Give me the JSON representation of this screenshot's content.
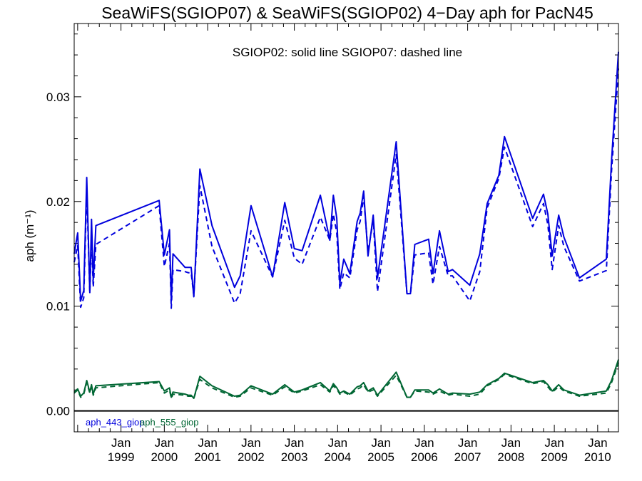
{
  "chart_data": {
    "type": "line",
    "title": "SeaWiFS(SGIOP07) & SeaWiFS(SGIOP02) 4−Day aph for PacN45",
    "annotation": "SGIOP02: solid line   SGIOP07: dashed line",
    "xlabel": "",
    "ylabel": "aph (m⁻¹)",
    "ylim": [
      -0.002,
      0.037
    ],
    "yticks": [
      0.0,
      0.01,
      0.02,
      0.03
    ],
    "ytick_labels": [
      "0.00",
      "0.01",
      "0.02",
      "0.03"
    ],
    "xlim": [
      1997.92,
      2010.48
    ],
    "xtick_month_label": "Jan",
    "xticks": [
      1999,
      2000,
      2001,
      2002,
      2003,
      2004,
      2005,
      2006,
      2007,
      2008,
      2009,
      2010
    ],
    "xtick_labels": [
      "1999",
      "2000",
      "2001",
      "2002",
      "2003",
      "2004",
      "2005",
      "2006",
      "2007",
      "2008",
      "2009",
      "2010"
    ],
    "zero_line": true,
    "legend_placement": "bottom-left",
    "legend": [
      {
        "label": "aph_443_giop",
        "color": "#0000dd"
      },
      {
        "label": "aph_555_giop",
        "color": "#006633"
      }
    ],
    "series": [
      {
        "name": "aph_443_giop",
        "color": "#0000dd",
        "style": "solid",
        "x": [
          1997.92,
          1998.0,
          1998.07,
          1998.14,
          1998.21,
          1998.28,
          1998.32,
          1998.36,
          1998.42,
          1999.88,
          2000.0,
          2000.12,
          2000.16,
          2000.2,
          2000.48,
          2000.55,
          2000.62,
          2000.68,
          2000.82,
          2001.1,
          2001.62,
          2001.75,
          2002.0,
          2002.5,
          2002.78,
          2003.0,
          2003.18,
          2003.6,
          2003.82,
          2003.9,
          2003.98,
          2004.05,
          2004.14,
          2004.28,
          2004.45,
          2004.52,
          2004.6,
          2004.7,
          2004.82,
          2004.92,
          2005.35,
          2005.6,
          2005.68,
          2005.78,
          2006.1,
          2006.2,
          2006.35,
          2006.55,
          2006.65,
          2007.05,
          2007.28,
          2007.45,
          2007.72,
          2007.85,
          2008.5,
          2008.75,
          2008.85,
          2008.95,
          2009.1,
          2009.22,
          2009.58,
          2010.2,
          2010.32,
          2010.48
        ],
        "y": [
          0.015,
          0.017,
          0.0105,
          0.0115,
          0.0223,
          0.0113,
          0.0183,
          0.0125,
          0.0177,
          0.0201,
          0.0149,
          0.0173,
          0.0105,
          0.015,
          0.0137,
          0.0137,
          0.0137,
          0.0109,
          0.0231,
          0.0177,
          0.0118,
          0.0129,
          0.0196,
          0.0128,
          0.0199,
          0.0155,
          0.0153,
          0.0206,
          0.0163,
          0.0206,
          0.0184,
          0.0122,
          0.0145,
          0.0131,
          0.0181,
          0.0189,
          0.021,
          0.0148,
          0.0187,
          0.0127,
          0.0257,
          0.0112,
          0.0112,
          0.0159,
          0.0164,
          0.0131,
          0.0172,
          0.0133,
          0.0135,
          0.012,
          0.015,
          0.0198,
          0.0225,
          0.0262,
          0.0184,
          0.0207,
          0.0188,
          0.0148,
          0.0187,
          0.0166,
          0.0127,
          0.0145,
          0.0239,
          0.0343
        ]
      },
      {
        "name": "aph_443_giop",
        "color": "#0000dd",
        "style": "dashed",
        "x": [
          1997.92,
          1998.0,
          1998.07,
          1998.14,
          1998.21,
          1998.28,
          1998.32,
          1998.36,
          1998.42,
          1999.88,
          2000.0,
          2000.12,
          2000.16,
          2000.2,
          2000.48,
          2000.55,
          2000.62,
          2000.68,
          2000.82,
          2001.1,
          2001.62,
          2001.75,
          2002.0,
          2002.5,
          2002.78,
          2003.0,
          2003.18,
          2003.6,
          2003.82,
          2003.9,
          2003.98,
          2004.05,
          2004.14,
          2004.28,
          2004.45,
          2004.52,
          2004.6,
          2004.7,
          2004.82,
          2004.92,
          2005.35,
          2005.6,
          2005.68,
          2005.78,
          2006.1,
          2006.2,
          2006.35,
          2006.55,
          2006.65,
          2007.05,
          2007.28,
          2007.45,
          2007.72,
          2007.85,
          2008.5,
          2008.75,
          2008.85,
          2008.95,
          2009.1,
          2009.22,
          2009.58,
          2010.2,
          2010.32,
          2010.48
        ],
        "y": [
          0.0142,
          0.0158,
          0.0099,
          0.0108,
          0.021,
          0.0113,
          0.0165,
          0.0118,
          0.0159,
          0.0196,
          0.0138,
          0.016,
          0.0098,
          0.0135,
          0.0133,
          0.0132,
          0.0132,
          0.011,
          0.0215,
          0.0157,
          0.0103,
          0.0112,
          0.0172,
          0.0128,
          0.0182,
          0.0146,
          0.014,
          0.0185,
          0.0163,
          0.0188,
          0.017,
          0.0116,
          0.0132,
          0.0127,
          0.0173,
          0.0181,
          0.0205,
          0.0152,
          0.0182,
          0.0114,
          0.0245,
          0.0112,
          0.0112,
          0.0149,
          0.0151,
          0.0121,
          0.0157,
          0.0129,
          0.0129,
          0.0105,
          0.0133,
          0.0194,
          0.0222,
          0.0252,
          0.0176,
          0.0198,
          0.0178,
          0.0135,
          0.0177,
          0.0157,
          0.0124,
          0.0134,
          0.0229,
          0.0327
        ]
      },
      {
        "name": "aph_555_giop",
        "color": "#006633",
        "style": "solid",
        "x": [
          1997.92,
          1998.0,
          1998.07,
          1998.14,
          1998.21,
          1998.28,
          1998.32,
          1998.36,
          1998.42,
          1999.88,
          2000.0,
          2000.12,
          2000.16,
          2000.2,
          2000.48,
          2000.55,
          2000.62,
          2000.68,
          2000.82,
          2001.1,
          2001.62,
          2001.75,
          2002.0,
          2002.5,
          2002.78,
          2003.0,
          2003.18,
          2003.6,
          2003.82,
          2003.9,
          2003.98,
          2004.05,
          2004.14,
          2004.28,
          2004.45,
          2004.52,
          2004.6,
          2004.7,
          2004.82,
          2004.92,
          2005.35,
          2005.6,
          2005.68,
          2005.78,
          2006.1,
          2006.2,
          2006.35,
          2006.55,
          2006.65,
          2007.05,
          2007.28,
          2007.45,
          2007.72,
          2007.85,
          2008.5,
          2008.75,
          2008.85,
          2008.95,
          2009.1,
          2009.22,
          2009.58,
          2010.2,
          2010.32,
          2010.48
        ],
        "y": [
          0.0018,
          0.0021,
          0.0014,
          0.0017,
          0.0029,
          0.0018,
          0.0025,
          0.0016,
          0.0024,
          0.0028,
          0.0019,
          0.0022,
          0.0013,
          0.0018,
          0.0016,
          0.0015,
          0.0015,
          0.0012,
          0.0033,
          0.0024,
          0.0014,
          0.0015,
          0.0024,
          0.0016,
          0.0025,
          0.0018,
          0.002,
          0.0027,
          0.0019,
          0.0026,
          0.0022,
          0.0017,
          0.0019,
          0.0016,
          0.0023,
          0.0024,
          0.0027,
          0.0019,
          0.0022,
          0.0015,
          0.0037,
          0.0013,
          0.0013,
          0.002,
          0.002,
          0.0017,
          0.0021,
          0.0016,
          0.0017,
          0.0016,
          0.0018,
          0.0025,
          0.0031,
          0.0036,
          0.0027,
          0.0029,
          0.0025,
          0.0019,
          0.0025,
          0.002,
          0.0015,
          0.0019,
          0.0029,
          0.0049
        ]
      },
      {
        "name": "aph_555_giop",
        "color": "#006633",
        "style": "dashed",
        "x": [
          1997.92,
          1998.0,
          1998.07,
          1998.14,
          1998.21,
          1998.28,
          1998.32,
          1998.36,
          1998.42,
          1999.88,
          2000.0,
          2000.12,
          2000.16,
          2000.2,
          2000.48,
          2000.55,
          2000.62,
          2000.68,
          2000.82,
          2001.1,
          2001.62,
          2001.75,
          2002.0,
          2002.5,
          2002.78,
          2003.0,
          2003.18,
          2003.6,
          2003.82,
          2003.9,
          2003.98,
          2004.05,
          2004.14,
          2004.28,
          2004.45,
          2004.52,
          2004.6,
          2004.7,
          2004.82,
          2004.92,
          2005.35,
          2005.6,
          2005.68,
          2005.78,
          2006.1,
          2006.2,
          2006.35,
          2006.55,
          2006.65,
          2007.05,
          2007.28,
          2007.45,
          2007.72,
          2007.85,
          2008.5,
          2008.75,
          2008.85,
          2008.95,
          2009.1,
          2009.22,
          2009.58,
          2010.2,
          2010.32,
          2010.48
        ],
        "y": [
          0.0017,
          0.002,
          0.0013,
          0.0016,
          0.0027,
          0.0017,
          0.0023,
          0.0015,
          0.0022,
          0.0027,
          0.0017,
          0.002,
          0.0012,
          0.0016,
          0.0015,
          0.0014,
          0.0014,
          0.0012,
          0.003,
          0.0022,
          0.0013,
          0.0014,
          0.0022,
          0.0015,
          0.0023,
          0.0017,
          0.0019,
          0.0025,
          0.0018,
          0.0024,
          0.0021,
          0.0016,
          0.0018,
          0.0015,
          0.0021,
          0.0022,
          0.0025,
          0.0018,
          0.002,
          0.0014,
          0.0034,
          0.0013,
          0.0013,
          0.0019,
          0.0018,
          0.0016,
          0.0019,
          0.0015,
          0.0016,
          0.0014,
          0.0016,
          0.0024,
          0.003,
          0.0035,
          0.0026,
          0.0028,
          0.0023,
          0.0018,
          0.0023,
          0.0019,
          0.0014,
          0.0017,
          0.0027,
          0.0046
        ]
      }
    ]
  }
}
